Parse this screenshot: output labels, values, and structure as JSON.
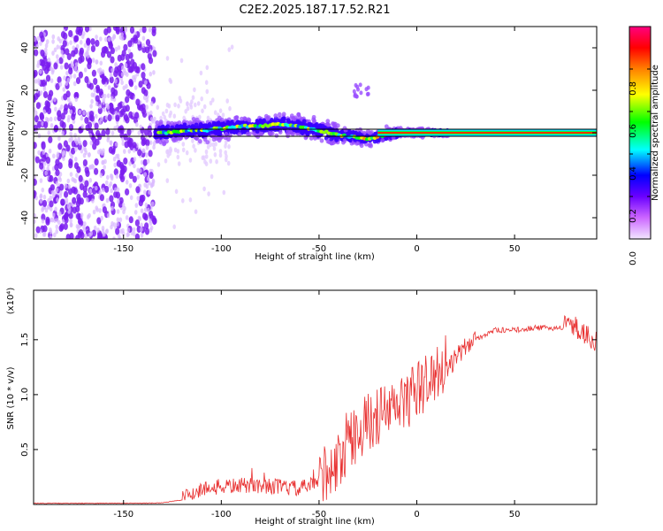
{
  "title": "C2E2.2025.187.17.52.R21",
  "chart_data": [
    {
      "type": "heatmap",
      "xlabel": "Height of straight line (km)",
      "ylabel": "Frequency (Hz)",
      "xlim": [
        -196,
        92
      ],
      "ylim": [
        -50,
        50
      ],
      "xticks": [
        -150,
        -100,
        -50,
        0,
        50
      ],
      "yticks": [
        -40,
        -20,
        0,
        20,
        40
      ],
      "line_freq": 0,
      "colorbar": {
        "label": "Normalized spectral amplitude",
        "range": [
          0,
          1
        ],
        "ticks": [
          0.0,
          0.2,
          0.4,
          0.6,
          0.8
        ],
        "tick_labels": [
          "0.0",
          "0.2",
          "0.4",
          "0.6",
          "0.8"
        ],
        "colors": [
          "#f2e6ff",
          "#cc66ff",
          "#6a00ff",
          "#0000ff",
          "#00ffff",
          "#00ff00",
          "#ffff00",
          "#ff8000",
          "#ff0000",
          "#ff0080"
        ]
      },
      "ridge": [
        {
          "x": -130,
          "f": 0
        },
        {
          "x": -120,
          "f": 1
        },
        {
          "x": -110,
          "f": 1
        },
        {
          "x": -100,
          "f": 2
        },
        {
          "x": -90,
          "f": 3
        },
        {
          "x": -80,
          "f": 3
        },
        {
          "x": -70,
          "f": 4
        },
        {
          "x": -60,
          "f": 3
        },
        {
          "x": -50,
          "f": 1
        },
        {
          "x": -40,
          "f": -1
        },
        {
          "x": -30,
          "f": -2
        },
        {
          "x": -25,
          "f": -3
        },
        {
          "x": -20,
          "f": -2
        },
        {
          "x": -15,
          "f": -1
        },
        {
          "x": -10,
          "f": 0
        },
        {
          "x": 0,
          "f": 0
        },
        {
          "x": 10,
          "f": 0
        },
        {
          "x": 50,
          "f": 0
        },
        {
          "x": 90,
          "f": 0
        }
      ]
    },
    {
      "type": "line",
      "xlabel": "Height of straight line (km)",
      "ylabel": "SNR (10 * v/v)",
      "multiplier": "(x10⁴)",
      "xlim": [
        -196,
        92
      ],
      "ylim": [
        0,
        1.95
      ],
      "xticks": [
        -150,
        -100,
        -50,
        0,
        50
      ],
      "yticks": [
        0.5,
        1.0,
        1.5
      ],
      "ytick_labels": [
        "0.5",
        "1.0",
        "1.5"
      ],
      "color": "#e83030",
      "trend": [
        {
          "x": -196,
          "y": 0.01
        },
        {
          "x": -140,
          "y": 0.01
        },
        {
          "x": -130,
          "y": 0.015
        },
        {
          "x": -120,
          "y": 0.04
        },
        {
          "x": -110,
          "y": 0.12
        },
        {
          "x": -100,
          "y": 0.14
        },
        {
          "x": -90,
          "y": 0.15
        },
        {
          "x": -80,
          "y": 0.15
        },
        {
          "x": -70,
          "y": 0.14
        },
        {
          "x": -60,
          "y": 0.12
        },
        {
          "x": -50,
          "y": 0.18
        },
        {
          "x": -40,
          "y": 0.3
        },
        {
          "x": -30,
          "y": 0.6
        },
        {
          "x": -20,
          "y": 0.72
        },
        {
          "x": -10,
          "y": 0.8
        },
        {
          "x": 0,
          "y": 0.95
        },
        {
          "x": 10,
          "y": 1.1
        },
        {
          "x": 20,
          "y": 1.3
        },
        {
          "x": 30,
          "y": 1.5
        },
        {
          "x": 40,
          "y": 1.58
        },
        {
          "x": 50,
          "y": 1.58
        },
        {
          "x": 60,
          "y": 1.6
        },
        {
          "x": 70,
          "y": 1.6
        },
        {
          "x": 80,
          "y": 1.6
        },
        {
          "x": 92,
          "y": 1.45
        }
      ]
    }
  ]
}
